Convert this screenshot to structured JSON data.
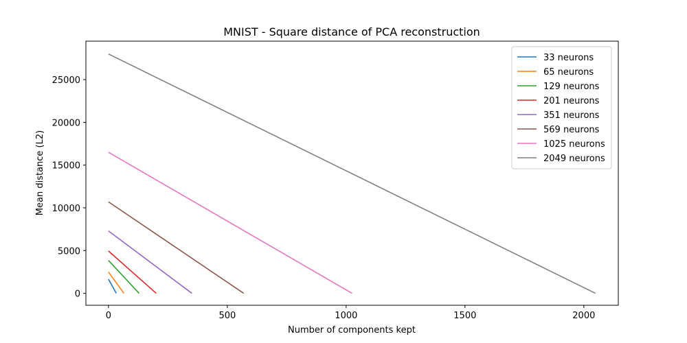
{
  "chart_data": {
    "type": "line",
    "title": "MNIST - Square distance of PCA reconstruction",
    "xlabel": "Number of components kept",
    "ylabel": "Mean distance (L2)",
    "xlim": [
      -95,
      2145
    ],
    "ylim": [
      -1400,
      29500
    ],
    "xticks": [
      0,
      500,
      1000,
      1500,
      2000
    ],
    "yticks": [
      0,
      5000,
      10000,
      15000,
      20000,
      25000
    ],
    "grid": false,
    "legend_position": "top-right",
    "series": [
      {
        "name": "33 neurons",
        "color": "#1f77b4",
        "x": [
          0,
          33
        ],
        "y": [
          1650,
          0
        ]
      },
      {
        "name": "65 neurons",
        "color": "#ff7f0e",
        "x": [
          0,
          65
        ],
        "y": [
          2500,
          0
        ]
      },
      {
        "name": "129 neurons",
        "color": "#2ca02c",
        "x": [
          0,
          129
        ],
        "y": [
          3850,
          0
        ]
      },
      {
        "name": "201 neurons",
        "color": "#d62728",
        "x": [
          0,
          201
        ],
        "y": [
          4950,
          0
        ]
      },
      {
        "name": "351 neurons",
        "color": "#9467bd",
        "x": [
          0,
          351
        ],
        "y": [
          7300,
          0
        ]
      },
      {
        "name": "569 neurons",
        "color": "#8c564b",
        "x": [
          0,
          569
        ],
        "y": [
          10700,
          0
        ]
      },
      {
        "name": "1025 neurons",
        "color": "#e377c2",
        "x": [
          0,
          1025
        ],
        "y": [
          16500,
          0
        ]
      },
      {
        "name": "2049 neurons",
        "color": "#7f7f7f",
        "x": [
          0,
          2049
        ],
        "y": [
          28000,
          0
        ]
      }
    ]
  }
}
